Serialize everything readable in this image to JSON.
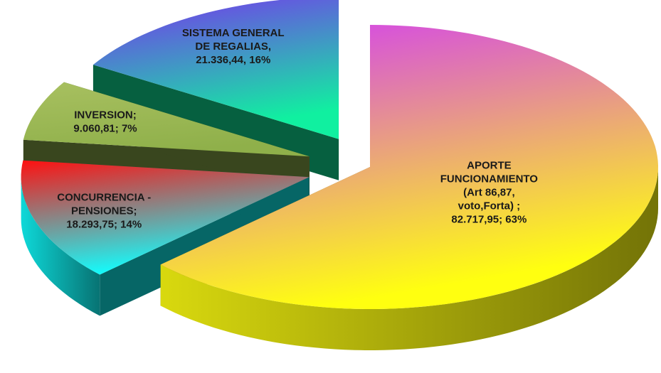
{
  "chart_data": {
    "type": "pie",
    "categories": [
      "APORTE FUNCIONAMIENTO(Art 86,87, voto,Forta)",
      "CONCURRENCIA - PENSIONES",
      "INVERSION",
      "SISTEMA GENERAL DE REGALIAS"
    ],
    "values": [
      82717.95,
      18293.75,
      9060.81,
      21336.44
    ],
    "data_labels": [
      "APORTE FUNCIONAMIENTO(Art 86,87, voto,Forta) ; 82.717,95; 63%",
      "CONCURRENCIA - PENSIONES; 18.293,75; 14%",
      "INVERSION; 9.060,81; 7%",
      "SISTEMA GENERAL DE REGALIAS, 21.336,44, 16%"
    ],
    "colors": [
      [
        "#d23cf5",
        "#ffff10"
      ],
      [
        "#ff1010",
        "#10ffff"
      ],
      [
        "#a8c060",
        "#8fb04a"
      ],
      [
        "#7a30f0",
        "#10f0a0"
      ]
    ]
  }
}
